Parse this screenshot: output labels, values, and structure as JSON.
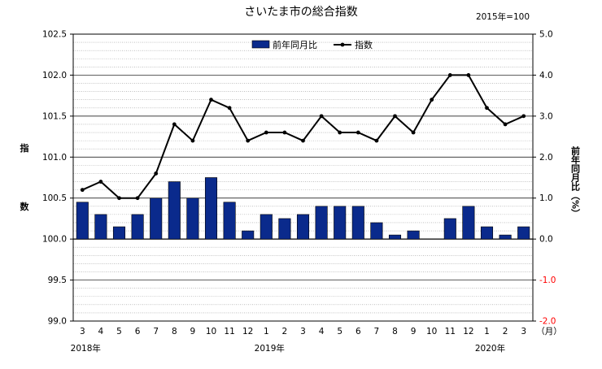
{
  "chart_data": {
    "type": "bar+line",
    "title": "さいたま市の総合指数",
    "base_note": "2015年=100",
    "categories": [
      "3",
      "4",
      "5",
      "6",
      "7",
      "8",
      "9",
      "10",
      "11",
      "12",
      "1",
      "2",
      "3",
      "4",
      "5",
      "6",
      "7",
      "8",
      "9",
      "10",
      "11",
      "12",
      "1",
      "2",
      "3"
    ],
    "year_labels": [
      {
        "index": 0,
        "label": "2018年"
      },
      {
        "index": 10,
        "label": "2019年"
      },
      {
        "index": 22,
        "label": "2020年"
      }
    ],
    "month_unit": "（月）",
    "series": [
      {
        "name": "前年同月比",
        "type": "bar",
        "axis": "right",
        "color": "#0a2a8c",
        "values": [
          0.9,
          0.6,
          0.3,
          0.6,
          1.0,
          1.4,
          1.0,
          1.5,
          0.9,
          0.2,
          0.6,
          0.5,
          0.6,
          0.8,
          0.8,
          0.8,
          0.4,
          0.1,
          0.2,
          0.0,
          0.5,
          0.8,
          0.3,
          0.1,
          0.3
        ]
      },
      {
        "name": "指数",
        "type": "line",
        "axis": "left",
        "color": "#000000",
        "values": [
          100.6,
          100.7,
          100.5,
          100.5,
          100.8,
          101.4,
          101.2,
          101.7,
          101.6,
          101.2,
          101.3,
          101.3,
          101.2,
          101.5,
          101.3,
          101.3,
          101.2,
          101.5,
          101.3,
          101.7,
          102.0,
          102.0,
          101.6,
          101.4,
          101.5
        ]
      }
    ],
    "left_axis": {
      "label": "指数",
      "ylim": [
        99.0,
        102.5
      ],
      "ticks": [
        "99.0",
        "99.5",
        "100.0",
        "100.5",
        "101.0",
        "101.5",
        "102.0",
        "102.5"
      ]
    },
    "right_axis": {
      "label": "前年同月比（%）",
      "ylim": [
        -2.0,
        5.0
      ],
      "ticks": [
        "-2.0",
        "-1.0",
        "0.0",
        "1.0",
        "2.0",
        "3.0",
        "4.0",
        "5.0"
      ],
      "negative_color": "#ff0000"
    },
    "grid": true,
    "legend_position": "top-center"
  }
}
